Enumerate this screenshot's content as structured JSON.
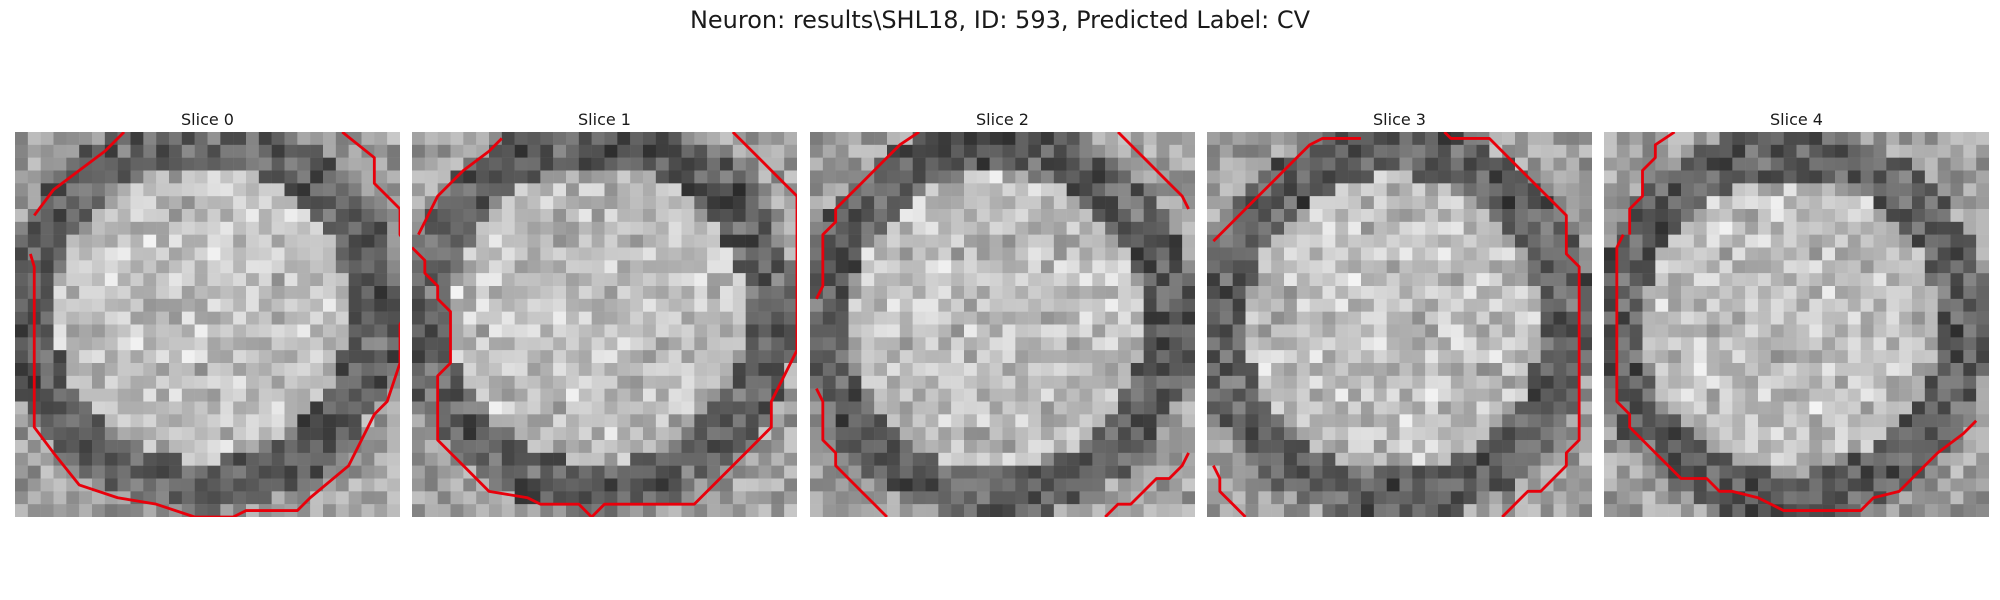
{
  "figure": {
    "title": "Neuron: results\\SHL18, ID: 593, Predicted Label: CV"
  },
  "colors": {
    "contour": "#e8000b",
    "background": "#ffffff"
  },
  "slices": [
    {
      "label": "Slice 0",
      "seed": 11,
      "contours": [
        [
          [
            1.5,
            6.5
          ],
          [
            3,
            4.5
          ],
          [
            5,
            3
          ],
          [
            7,
            1.5
          ],
          [
            8.5,
            0
          ]
        ],
        [
          [
            1.2,
            9.5
          ],
          [
            1.5,
            10.5
          ],
          [
            1.5,
            17
          ],
          [
            1.5,
            23
          ],
          [
            3,
            25
          ],
          [
            5,
            27.5
          ],
          [
            8,
            28.5
          ],
          [
            11,
            29
          ],
          [
            14,
            30
          ],
          [
            17,
            30
          ],
          [
            18,
            29.5
          ],
          [
            22,
            29.5
          ],
          [
            23,
            28.5
          ],
          [
            26,
            26
          ],
          [
            27,
            24
          ],
          [
            28,
            22
          ],
          [
            29,
            21
          ],
          [
            30,
            18
          ],
          [
            30,
            15
          ],
          [
            31,
            13
          ],
          [
            32,
            11
          ],
          [
            31,
            9.5
          ],
          [
            30,
            8
          ],
          [
            30,
            6
          ],
          [
            28,
            4
          ],
          [
            28,
            2
          ],
          [
            25.5,
            0
          ]
        ]
      ]
    },
    {
      "label": "Slice 1",
      "seed": 23,
      "contours": [
        [
          [
            0.5,
            8
          ],
          [
            1,
            7
          ],
          [
            2,
            5
          ],
          [
            4,
            3
          ],
          [
            6,
            1.5
          ],
          [
            7,
            0.5
          ]
        ],
        [
          [
            0,
            9
          ],
          [
            1,
            10
          ],
          [
            1,
            11
          ],
          [
            2,
            12
          ],
          [
            2,
            13
          ],
          [
            3,
            14
          ],
          [
            3,
            18
          ],
          [
            2,
            19
          ],
          [
            2,
            24
          ],
          [
            3,
            25
          ],
          [
            4,
            26
          ],
          [
            5,
            27
          ],
          [
            6,
            28
          ],
          [
            9,
            28.5
          ],
          [
            10,
            29
          ],
          [
            13,
            29
          ],
          [
            14,
            30
          ],
          [
            15,
            29
          ],
          [
            17,
            29
          ],
          [
            22,
            29
          ],
          [
            24,
            27
          ],
          [
            26,
            25
          ],
          [
            28,
            23
          ],
          [
            28,
            21
          ],
          [
            29,
            19
          ],
          [
            30,
            17
          ],
          [
            30,
            5
          ],
          [
            29,
            4
          ],
          [
            27,
            2
          ],
          [
            25,
            0
          ]
        ]
      ]
    },
    {
      "label": "Slice 2",
      "seed": 37,
      "contours": [
        [
          [
            0.5,
            13
          ],
          [
            1,
            12
          ],
          [
            1,
            8
          ],
          [
            2,
            7
          ],
          [
            2,
            6
          ],
          [
            3,
            5
          ],
          [
            4,
            4
          ],
          [
            5,
            3
          ],
          [
            6,
            2
          ],
          [
            7,
            1
          ],
          [
            8.5,
            0
          ]
        ],
        [
          [
            24,
            0
          ],
          [
            25,
            1
          ],
          [
            26,
            2
          ],
          [
            27,
            3
          ],
          [
            28,
            4
          ],
          [
            29,
            5
          ],
          [
            29.5,
            6
          ]
        ],
        [
          [
            0.5,
            20
          ],
          [
            1,
            21
          ],
          [
            1,
            24
          ],
          [
            2,
            25
          ],
          [
            2,
            26
          ],
          [
            3,
            27
          ],
          [
            4,
            28
          ],
          [
            5,
            29
          ],
          [
            6,
            30
          ]
        ],
        [
          [
            23,
            30
          ],
          [
            24,
            29
          ],
          [
            25,
            29
          ],
          [
            26,
            28
          ],
          [
            27,
            27
          ],
          [
            28,
            27
          ],
          [
            29,
            26
          ],
          [
            29.5,
            25
          ]
        ]
      ]
    },
    {
      "label": "Slice 3",
      "seed": 49,
      "contours": [
        [
          [
            0.5,
            8.5
          ],
          [
            2,
            7
          ],
          [
            3,
            6
          ],
          [
            4,
            5
          ],
          [
            5,
            4
          ],
          [
            6,
            3
          ],
          [
            7,
            2
          ],
          [
            8,
            1
          ],
          [
            9,
            0.5
          ],
          [
            12,
            0.5
          ]
        ],
        [
          [
            18.5,
            0
          ],
          [
            19,
            0.5
          ],
          [
            22,
            0.5
          ],
          [
            24,
            2.5
          ],
          [
            26,
            4.5
          ],
          [
            28,
            6.5
          ],
          [
            28,
            9.5
          ],
          [
            29,
            10.5
          ],
          [
            29,
            24
          ],
          [
            28,
            25
          ],
          [
            28,
            26
          ],
          [
            27,
            27
          ],
          [
            26,
            28
          ],
          [
            25,
            28
          ],
          [
            24,
            29
          ],
          [
            23,
            30
          ]
        ],
        [
          [
            0.5,
            26
          ],
          [
            1,
            27
          ],
          [
            1,
            28
          ],
          [
            2,
            29
          ],
          [
            3,
            30
          ]
        ]
      ]
    },
    {
      "label": "Slice 4",
      "seed": 61,
      "contours": [
        [
          [
            2,
            8
          ],
          [
            2,
            6
          ],
          [
            3,
            5
          ],
          [
            3,
            3
          ],
          [
            4,
            2
          ],
          [
            4,
            1
          ],
          [
            5.5,
            0
          ]
        ],
        [
          [
            1.5,
            8
          ],
          [
            1,
            9
          ],
          [
            1,
            16
          ],
          [
            1,
            21
          ],
          [
            2,
            22
          ],
          [
            2,
            23
          ],
          [
            3,
            24
          ],
          [
            4,
            25
          ],
          [
            5,
            26
          ],
          [
            6,
            27
          ],
          [
            8,
            27
          ],
          [
            9,
            28
          ],
          [
            10,
            28
          ],
          [
            12,
            28.5
          ],
          [
            13,
            29
          ],
          [
            14,
            29.5
          ],
          [
            15,
            29.5
          ],
          [
            18,
            29.5
          ],
          [
            20,
            29.5
          ],
          [
            21,
            28.5
          ],
          [
            23,
            28
          ],
          [
            24,
            27
          ],
          [
            25,
            26
          ],
          [
            26,
            25
          ],
          [
            28,
            23.5
          ],
          [
            29,
            22.5
          ]
        ]
      ]
    }
  ]
}
